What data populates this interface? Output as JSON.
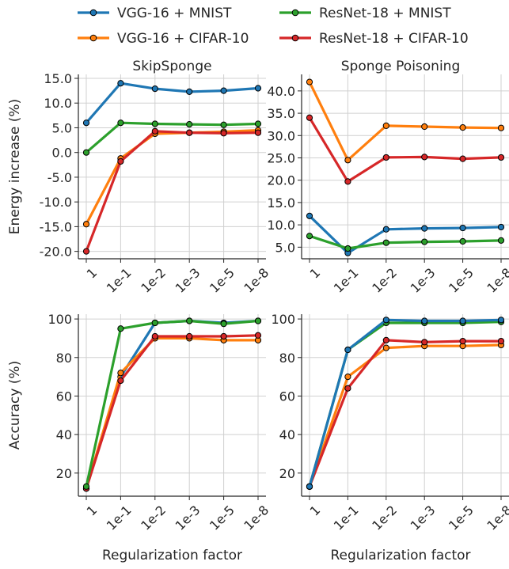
{
  "legend": {
    "entries": [
      {
        "name": "VGG-16 + MNIST",
        "color": "#1f77b4"
      },
      {
        "name": "ResNet-18 + MNIST",
        "color": "#2ca02c"
      },
      {
        "name": "VGG-16 + CIFAR-10",
        "color": "#ff7f0e"
      },
      {
        "name": "ResNet-18 + CIFAR-10",
        "color": "#d62728"
      }
    ]
  },
  "chart_data": [
    {
      "type": "line",
      "title": "SkipSponge",
      "xlabel": "",
      "ylabel": "Energy increase (%)",
      "categories": [
        "1",
        "1e-1",
        "1e-2",
        "1e-3",
        "1e-5",
        "1e-8"
      ],
      "ylim": [
        -21.5,
        15.8
      ],
      "yticks": [
        -20,
        -15,
        -10,
        -5,
        0,
        5,
        10,
        15
      ],
      "yticklabels": [
        "-20.0",
        "-15.0",
        "-10.0",
        "-5.0",
        "0.0",
        "5.0",
        "10.0",
        "15.0"
      ],
      "grid": true,
      "series": [
        {
          "name": "VGG-16 + MNIST",
          "color": "#1f77b4",
          "values": [
            6.0,
            14.0,
            12.9,
            12.3,
            12.5,
            13.0
          ]
        },
        {
          "name": "ResNet-18 + MNIST",
          "color": "#2ca02c",
          "values": [
            0.0,
            6.0,
            5.8,
            5.7,
            5.6,
            5.8
          ]
        },
        {
          "name": "VGG-16 + CIFAR-10",
          "color": "#ff7f0e",
          "values": [
            -14.5,
            -1.2,
            3.8,
            4.0,
            4.2,
            4.5
          ]
        },
        {
          "name": "ResNet-18 + CIFAR-10",
          "color": "#d62728",
          "values": [
            -20.0,
            -1.8,
            4.3,
            4.0,
            3.9,
            4.0
          ]
        }
      ]
    },
    {
      "type": "line",
      "title": "Sponge Poisoning",
      "xlabel": "",
      "ylabel": "",
      "categories": [
        "1",
        "1e-1",
        "1e-2",
        "1e-3",
        "1e-5",
        "1e-8"
      ],
      "ylim": [
        2.4,
        43.7
      ],
      "yticks": [
        5,
        10,
        15,
        20,
        25,
        30,
        35,
        40
      ],
      "yticklabels": [
        "5.0",
        "10.0",
        "15.0",
        "20.0",
        "25.0",
        "30.0",
        "35.0",
        "40.0"
      ],
      "grid": true,
      "series": [
        {
          "name": "VGG-16 + MNIST",
          "color": "#1f77b4",
          "values": [
            12.0,
            3.7,
            9.0,
            9.2,
            9.3,
            9.5
          ]
        },
        {
          "name": "ResNet-18 + MNIST",
          "color": "#2ca02c",
          "values": [
            7.5,
            4.7,
            6.0,
            6.2,
            6.3,
            6.5
          ]
        },
        {
          "name": "VGG-16 + CIFAR-10",
          "color": "#ff7f0e",
          "values": [
            42.0,
            24.5,
            32.2,
            32.0,
            31.8,
            31.7
          ]
        },
        {
          "name": "ResNet-18 + CIFAR-10",
          "color": "#d62728",
          "values": [
            34.0,
            19.7,
            25.1,
            25.2,
            24.8,
            25.1
          ]
        }
      ]
    },
    {
      "type": "line",
      "title": "",
      "xlabel": "Regularization factor",
      "ylabel": "Accuracy (%)",
      "categories": [
        "1",
        "1e-1",
        "1e-2",
        "1e-3",
        "1e-5",
        "1e-8"
      ],
      "ylim": [
        8,
        102.5
      ],
      "yticks": [
        20,
        40,
        60,
        80,
        100
      ],
      "yticklabels": [
        "20",
        "40",
        "60",
        "80",
        "100"
      ],
      "grid": true,
      "series": [
        {
          "name": "VGG-16 + MNIST",
          "color": "#1f77b4",
          "values": [
            12,
            70,
            98,
            99,
            98,
            99
          ]
        },
        {
          "name": "VGG-16 + CIFAR-10",
          "color": "#ff7f0e",
          "values": [
            12,
            72,
            90,
            90,
            89,
            89
          ]
        },
        {
          "name": "ResNet-18 + CIFAR-10",
          "color": "#d62728",
          "values": [
            12,
            68,
            91,
            91,
            91,
            91.5
          ]
        },
        {
          "name": "ResNet-18 + MNIST",
          "color": "#2ca02c",
          "values": [
            13,
            95,
            98,
            99,
            97.5,
            99
          ]
        }
      ]
    },
    {
      "type": "line",
      "title": "",
      "xlabel": "Regularization factor",
      "ylabel": "",
      "categories": [
        "1",
        "1e-1",
        "1e-2",
        "1e-3",
        "1e-5",
        "1e-8"
      ],
      "ylim": [
        8,
        102.5
      ],
      "yticks": [
        20,
        40,
        60,
        80,
        100
      ],
      "yticklabels": [
        "20",
        "40",
        "60",
        "80",
        "100"
      ],
      "grid": true,
      "series": [
        {
          "name": "VGG-16 + CIFAR-10",
          "color": "#ff7f0e",
          "values": [
            13,
            70,
            85,
            86,
            86,
            86.5
          ]
        },
        {
          "name": "ResNet-18 + CIFAR-10",
          "color": "#d62728",
          "values": [
            13,
            64,
            89,
            88,
            88.5,
            88.5
          ]
        },
        {
          "name": "ResNet-18 + MNIST",
          "color": "#2ca02c",
          "values": [
            13,
            84,
            98,
            98,
            98,
            98.5
          ]
        },
        {
          "name": "VGG-16 + MNIST",
          "color": "#1f77b4",
          "values": [
            13,
            84,
            99.5,
            99,
            99,
            99.5
          ]
        }
      ]
    }
  ]
}
